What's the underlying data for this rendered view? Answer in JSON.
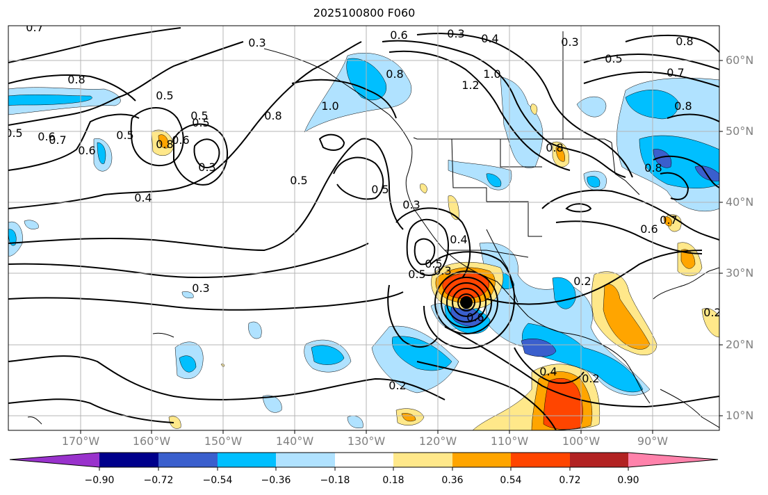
{
  "title": "2025100800 F060",
  "lat_labels": [
    "60°N",
    "50°N",
    "40°N",
    "30°N",
    "20°N",
    "10°N"
  ],
  "lon_labels": [
    "170°W",
    "160°W",
    "150°W",
    "140°W",
    "130°W",
    "120°W",
    "110°W",
    "100°W",
    "90°W"
  ],
  "contour_labels": [
    "0.7",
    "0.3",
    "0.6",
    "0.3",
    "0.4",
    "0.3",
    "0.8",
    "0.5",
    "0.7",
    "0.8",
    "0.5",
    "0.5",
    "0.8",
    "0.8",
    "1.0",
    "0.8",
    "0.6",
    "1.2",
    "1.0",
    "0.8",
    "0.8",
    "0.5",
    "0.5",
    "0.6",
    "0.7",
    "0.6",
    "0.5",
    "0.8",
    "0.3",
    "0.4",
    "0.5",
    "0.5",
    "0.3",
    "0.3",
    "0.4",
    "0.2",
    "0.5",
    "0.6",
    "0.5",
    "0.7",
    "0.6",
    "0.3",
    "0.2",
    "0.4",
    "0.2",
    "0.2"
  ],
  "colorbar": {
    "ticks": [
      "−0.90",
      "−0.72",
      "−0.54",
      "−0.36",
      "−0.18",
      "0.18",
      "0.36",
      "0.54",
      "0.72",
      "0.90"
    ],
    "colors": [
      "#9932cc",
      "#00008b",
      "#3a5fcd",
      "#00bfff",
      "#b0e2ff",
      "#ffffff",
      "#ffe88a",
      "#ffa500",
      "#ff4500",
      "#b22222",
      "#ff82ab"
    ]
  },
  "colors": {
    "light_blue": "#b0e2ff",
    "blue": "#00bfff",
    "dark_blue": "#3a5fcd",
    "yellow": "#ffe88a",
    "orange": "#ffa500",
    "red_orange": "#ff4500",
    "grid": "#b4b4b4",
    "axis_label": "#808080"
  }
}
